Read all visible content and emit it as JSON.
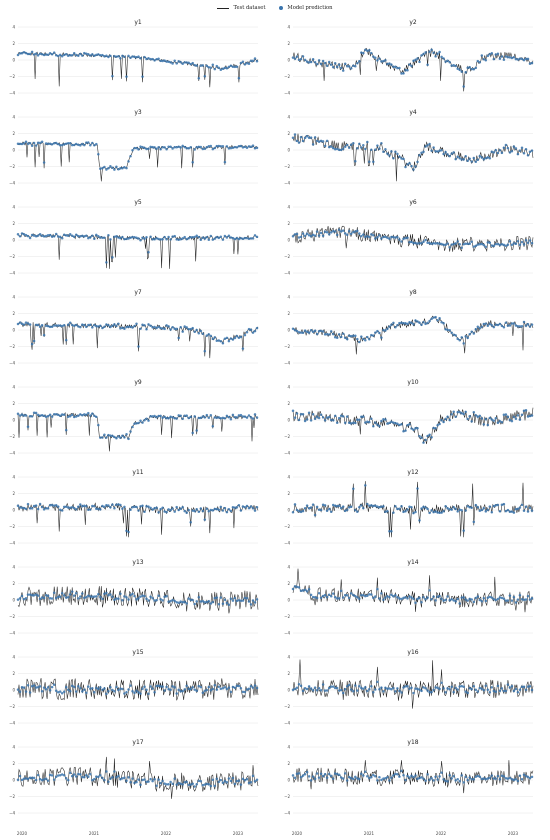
{
  "legend": {
    "test_label": "Test dataset",
    "prediction_label": "Model prediction"
  },
  "colors": {
    "test_line": "#222222",
    "prediction_marker": "#3a74ad",
    "grid": "#e6e6e6"
  },
  "chart_data": {
    "type": "line",
    "layout": "9 rows x 2 columns of line charts with scatter overlay",
    "ylim": [
      -4,
      4
    ],
    "yticks": [
      -4,
      -2,
      0,
      2,
      4
    ],
    "x_ticks": [
      "2020",
      "2021",
      "2022",
      "2023"
    ],
    "grid": "horizontal",
    "legend_placement": "top-center",
    "panels": [
      {
        "title": "y1",
        "profile": [
          [
            0.0,
            0.8
          ],
          [
            0.3,
            0.6
          ],
          [
            0.5,
            0.3
          ],
          [
            0.7,
            -0.4
          ],
          [
            0.85,
            -1.0
          ],
          [
            1.0,
            0.0
          ]
        ],
        "spikes": [
          [
            0.07,
            -2.3
          ],
          [
            0.17,
            -3.2
          ],
          [
            0.45,
            -2.6
          ],
          [
            0.52,
            -2.7
          ],
          [
            0.78,
            -2.4
          ],
          [
            0.8,
            -3.3
          ],
          [
            0.92,
            -2.7
          ]
        ],
        "noise": 0.2
      },
      {
        "title": "y2",
        "profile": [
          [
            0.0,
            0.5
          ],
          [
            0.12,
            -0.5
          ],
          [
            0.25,
            -1.0
          ],
          [
            0.3,
            1.2
          ],
          [
            0.45,
            -1.4
          ],
          [
            0.58,
            1.0
          ],
          [
            0.72,
            -1.4
          ],
          [
            0.8,
            0.4
          ],
          [
            0.9,
            0.5
          ],
          [
            1.0,
            -0.3
          ]
        ],
        "spikes": [],
        "noise": 0.5
      },
      {
        "title": "y3",
        "profile": [
          [
            0.0,
            0.8
          ],
          [
            0.33,
            0.7
          ],
          [
            0.34,
            -2.2
          ],
          [
            0.45,
            -2.2
          ],
          [
            0.48,
            0.2
          ],
          [
            1.0,
            0.4
          ]
        ],
        "spikes": [
          [
            0.07,
            -2.1
          ],
          [
            0.11,
            -2.2
          ],
          [
            0.18,
            -2.0
          ],
          [
            0.58,
            -2.1
          ],
          [
            0.68,
            -2.2
          ],
          [
            0.73,
            -2.1
          ],
          [
            0.86,
            -1.8
          ]
        ],
        "noise": 0.2
      },
      {
        "title": "y4",
        "profile": [
          [
            0.0,
            1.5
          ],
          [
            0.2,
            0.5
          ],
          [
            0.35,
            0.5
          ],
          [
            0.45,
            -1.0
          ],
          [
            0.5,
            -2.3
          ],
          [
            0.55,
            0.5
          ],
          [
            0.65,
            -0.5
          ],
          [
            0.75,
            -1.2
          ],
          [
            0.9,
            0.2
          ],
          [
            1.0,
            -0.5
          ]
        ],
        "spikes": [],
        "noise": 0.6
      },
      {
        "title": "y5",
        "profile": [
          [
            0.0,
            0.6
          ],
          [
            0.4,
            0.3
          ],
          [
            0.6,
            0.2
          ],
          [
            1.0,
            0.3
          ]
        ],
        "spikes": [
          [
            0.17,
            -2.4
          ],
          [
            0.37,
            -3.4
          ],
          [
            0.38,
            -3.5
          ],
          [
            0.6,
            -3.4
          ],
          [
            0.63,
            -3.5
          ],
          [
            0.74,
            -2.6
          ],
          [
            0.9,
            -1.7
          ]
        ],
        "noise": 0.25
      },
      {
        "title": "y6",
        "profile": [
          [
            0.0,
            0.5
          ],
          [
            0.2,
            1.0
          ],
          [
            0.4,
            0.2
          ],
          [
            0.6,
            -0.5
          ],
          [
            0.8,
            -0.6
          ],
          [
            1.0,
            -0.3
          ]
        ],
        "spikes": [],
        "noise": 0.9
      },
      {
        "title": "y7",
        "profile": [
          [
            0.0,
            0.7
          ],
          [
            0.4,
            0.5
          ],
          [
            0.6,
            0.3
          ],
          [
            0.75,
            0.0
          ],
          [
            0.85,
            -1.5
          ],
          [
            1.0,
            0.2
          ]
        ],
        "spikes": [
          [
            0.06,
            -2.4
          ],
          [
            0.2,
            -1.8
          ],
          [
            0.33,
            -2.2
          ],
          [
            0.5,
            -2.6
          ],
          [
            0.78,
            -3.2
          ],
          [
            0.8,
            -3.4
          ]
        ],
        "noise": 0.3
      },
      {
        "title": "y8",
        "profile": [
          [
            0.0,
            0.0
          ],
          [
            0.2,
            -0.6
          ],
          [
            0.3,
            -1.3
          ],
          [
            0.4,
            0.5
          ],
          [
            0.55,
            1.0
          ],
          [
            0.6,
            1.5
          ],
          [
            0.7,
            -1.4
          ],
          [
            0.8,
            0.8
          ],
          [
            1.0,
            0.6
          ]
        ],
        "spikes": [],
        "noise": 0.45
      },
      {
        "title": "y9",
        "profile": [
          [
            0.0,
            0.6
          ],
          [
            0.33,
            0.6
          ],
          [
            0.34,
            -2.0
          ],
          [
            0.46,
            -2.0
          ],
          [
            0.48,
            -0.5
          ],
          [
            0.55,
            0.3
          ],
          [
            1.0,
            0.4
          ]
        ],
        "spikes": [
          [
            0.08,
            -1.9
          ],
          [
            0.12,
            -2.1
          ],
          [
            0.2,
            -1.8
          ],
          [
            0.6,
            -1.8
          ],
          [
            0.73,
            -1.9
          ],
          [
            0.85,
            -1.4
          ]
        ],
        "noise": 0.25
      },
      {
        "title": "y10",
        "profile": [
          [
            0.0,
            0.6
          ],
          [
            0.2,
            0.2
          ],
          [
            0.4,
            -0.4
          ],
          [
            0.5,
            -1.0
          ],
          [
            0.56,
            -2.6
          ],
          [
            0.62,
            0.3
          ],
          [
            0.7,
            0.8
          ],
          [
            0.8,
            -0.2
          ],
          [
            1.0,
            0.8
          ]
        ],
        "spikes": [],
        "noise": 0.7
      },
      {
        "title": "y11",
        "profile": [
          [
            0.0,
            0.3
          ],
          [
            0.4,
            0.4
          ],
          [
            0.6,
            0.0
          ],
          [
            1.0,
            0.2
          ]
        ],
        "spikes": [
          [
            0.08,
            -1.6
          ],
          [
            0.17,
            -2.6
          ],
          [
            0.28,
            -1.8
          ],
          [
            0.45,
            -3.2
          ],
          [
            0.46,
            -3.3
          ],
          [
            0.6,
            -3.0
          ],
          [
            0.72,
            -2.0
          ],
          [
            0.8,
            -2.8
          ],
          [
            0.9,
            -2.2
          ]
        ],
        "noise": 0.45
      },
      {
        "title": "y12",
        "profile": [
          [
            0.0,
            0.2
          ],
          [
            0.3,
            0.3
          ],
          [
            0.5,
            0.0
          ],
          [
            0.7,
            0.2
          ],
          [
            1.0,
            0.2
          ]
        ],
        "spikes": [
          [
            0.25,
            3.2
          ],
          [
            0.3,
            3.5
          ],
          [
            0.4,
            -3.3
          ],
          [
            0.41,
            -3.3
          ],
          [
            0.52,
            3.4
          ],
          [
            0.7,
            -3.2
          ],
          [
            0.71,
            -3.3
          ],
          [
            0.75,
            3.2
          ],
          [
            0.96,
            3.3
          ]
        ],
        "noise": 0.55
      },
      {
        "title": "y13",
        "profile": [
          [
            0.0,
            0.4
          ],
          [
            0.3,
            0.6
          ],
          [
            0.6,
            0.2
          ],
          [
            0.8,
            -0.2
          ],
          [
            1.0,
            0.0
          ]
        ],
        "spikes": [],
        "noise": 1.2
      },
      {
        "title": "y14",
        "profile": [
          [
            0.0,
            1.5
          ],
          [
            0.1,
            0.6
          ],
          [
            0.4,
            0.4
          ],
          [
            0.7,
            0.0
          ],
          [
            1.0,
            0.2
          ]
        ],
        "spikes": [
          [
            0.02,
            3.8
          ],
          [
            0.2,
            2.5
          ],
          [
            0.35,
            2.7
          ],
          [
            0.57,
            3.0
          ],
          [
            0.84,
            2.8
          ]
        ],
        "noise": 0.9
      },
      {
        "title": "y15",
        "profile": [
          [
            0.0,
            0.2
          ],
          [
            0.5,
            0.0
          ],
          [
            1.0,
            0.2
          ]
        ],
        "spikes": [],
        "noise": 1.3
      },
      {
        "title": "y16",
        "profile": [
          [
            0.0,
            0.3
          ],
          [
            0.5,
            0.0
          ],
          [
            1.0,
            0.2
          ]
        ],
        "spikes": [
          [
            0.03,
            3.7
          ],
          [
            0.35,
            2.8
          ],
          [
            0.58,
            3.6
          ],
          [
            0.62,
            2.5
          ]
        ],
        "noise": 1.1
      },
      {
        "title": "y17",
        "profile": [
          [
            0.0,
            0.2
          ],
          [
            0.3,
            0.4
          ],
          [
            0.5,
            -0.2
          ],
          [
            0.8,
            -0.4
          ],
          [
            1.0,
            0.0
          ]
        ],
        "spikes": [
          [
            0.37,
            2.8
          ],
          [
            0.4,
            2.6
          ],
          [
            0.55,
            2.3
          ],
          [
            0.98,
            1.8
          ]
        ],
        "noise": 1.2
      },
      {
        "title": "y18",
        "profile": [
          [
            0.0,
            0.6
          ],
          [
            0.3,
            0.4
          ],
          [
            0.6,
            0.2
          ],
          [
            1.0,
            0.3
          ]
        ],
        "spikes": [
          [
            0.3,
            2.4
          ],
          [
            0.45,
            2.4
          ],
          [
            0.62,
            2.3
          ],
          [
            0.9,
            2.4
          ]
        ],
        "noise": 1.0
      }
    ]
  }
}
